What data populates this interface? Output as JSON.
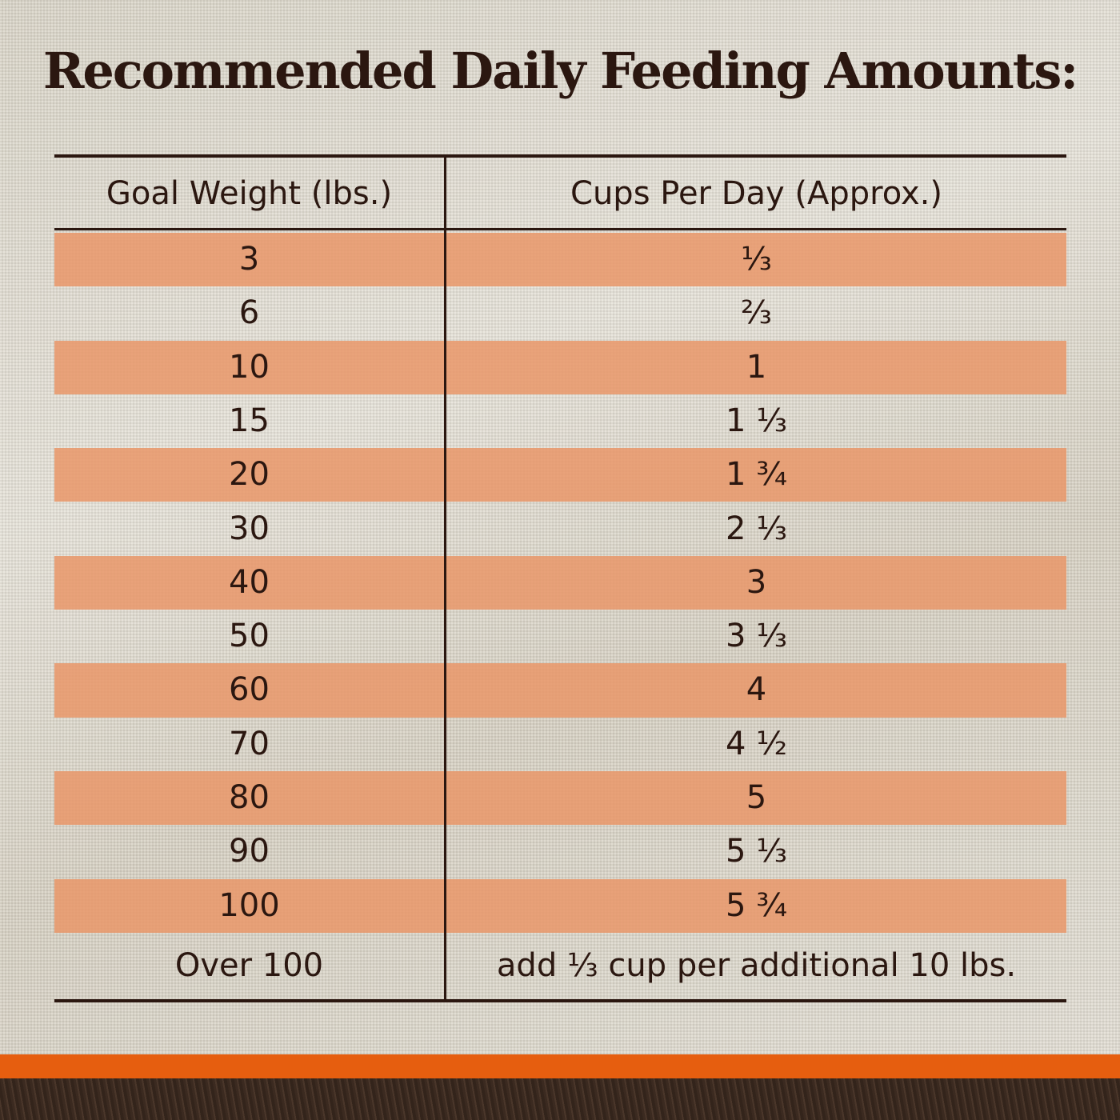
{
  "title": "Recommended Daily Feeding Amounts:",
  "table": {
    "headers": [
      "Goal Weight (lbs.)",
      "Cups Per Day (Approx.)"
    ],
    "rows": [
      [
        "3",
        "⅓"
      ],
      [
        "6",
        "⅔"
      ],
      [
        "10",
        "1"
      ],
      [
        "15",
        "1 ⅓"
      ],
      [
        "20",
        "1 ¾"
      ],
      [
        "30",
        "2 ⅓"
      ],
      [
        "40",
        "3"
      ],
      [
        "50",
        "3 ⅓"
      ],
      [
        "60",
        "4"
      ],
      [
        "70",
        "4 ½"
      ],
      [
        "80",
        "5"
      ],
      [
        "90",
        "5 ⅓"
      ],
      [
        "100",
        "5 ¾"
      ],
      [
        "Over 100",
        "add ⅓ cup per additional 10 lbs."
      ]
    ],
    "stripe_color": "#e9a27a"
  },
  "colors": {
    "text": "#2b1710",
    "accent_bar": "#e65e0f",
    "footer": "#3b2a20"
  }
}
